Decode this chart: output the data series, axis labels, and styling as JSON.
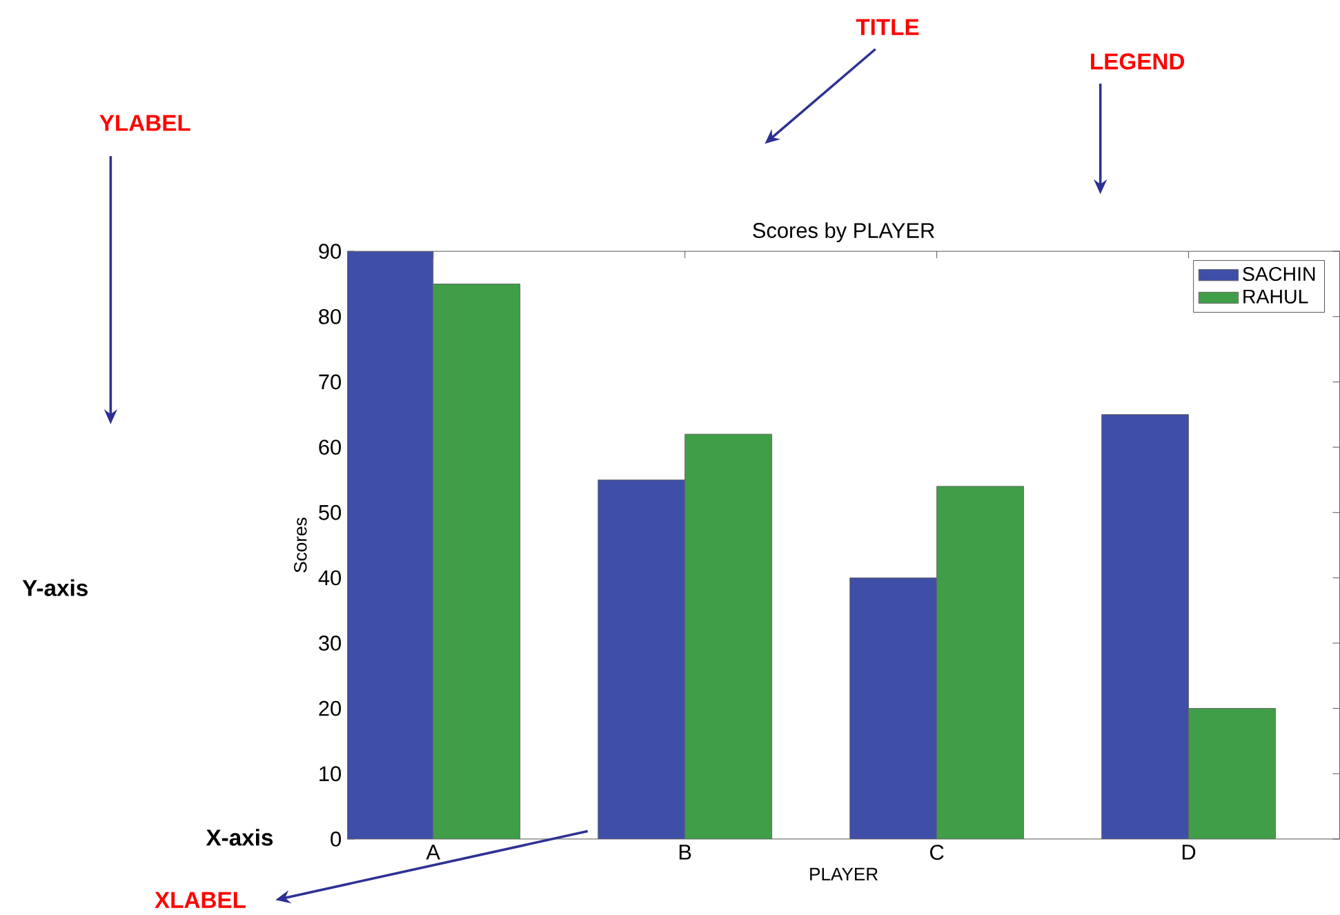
{
  "chart_data": {
    "type": "bar",
    "title": "Scores by PLAYER",
    "xlabel": "PLAYER",
    "ylabel": "Scores",
    "categories": [
      "A",
      "B",
      "C",
      "D"
    ],
    "series": [
      {
        "name": "SACHIN",
        "color": "#3f4ea6",
        "values": [
          90,
          55,
          40,
          65
        ]
      },
      {
        "name": "RAHUL",
        "color": "#3f9e47",
        "values": [
          85,
          62,
          54,
          20
        ]
      }
    ],
    "ylim": [
      0,
      90
    ],
    "yticks": [
      0,
      10,
      20,
      30,
      40,
      50,
      60,
      70,
      80,
      90
    ],
    "legend": "top right",
    "grid": false,
    "annotations": [
      "TITLE",
      "LEGEND",
      "YLABEL",
      "Y-axis",
      "X-axis",
      "XLABEL"
    ]
  }
}
